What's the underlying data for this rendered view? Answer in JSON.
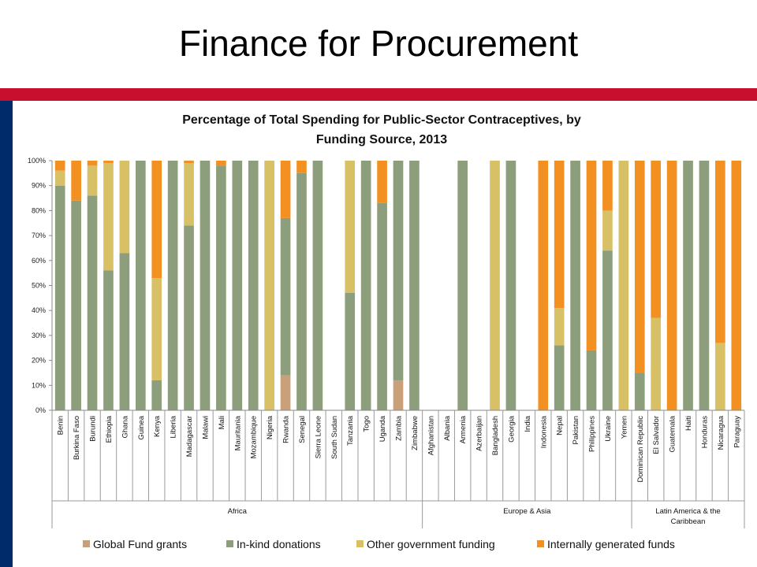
{
  "slide": {
    "title": "Finance for Procurement"
  },
  "colors": {
    "accent_band": "#c8102e",
    "side_bar": "#002b6b"
  },
  "chart_data": {
    "type": "bar",
    "stacked": true,
    "title": "Percentage of Total Spending for Public-Sector Contraceptives, by Funding Source, 2013",
    "title_lines": [
      "Percentage of Total Spending for Public-Sector Contraceptives, by",
      "Funding Source, 2013"
    ],
    "xlabel": "",
    "ylabel": "",
    "ylim": [
      0,
      100
    ],
    "yticks": [
      0,
      10,
      20,
      30,
      40,
      50,
      60,
      70,
      80,
      90,
      100
    ],
    "ytick_labels": [
      "0%",
      "10%",
      "20%",
      "30%",
      "40%",
      "50%",
      "60%",
      "70%",
      "80%",
      "90%",
      "100%"
    ],
    "grid": false,
    "legend": "bottom",
    "categories": [
      "Benin",
      "Burkina Faso",
      "Burundi",
      "Ethiopia",
      "Ghana",
      "Guinea",
      "Kenya",
      "Liberia",
      "Madagascar",
      "Malawi",
      "Mali",
      "Mauritania",
      "Mozambique",
      "Nigeria",
      "Rwanda",
      "Senegal",
      "Sierra Leone",
      "South Sudan",
      "Tanzania",
      "Togo",
      "Uganda",
      "Zambia",
      "Zimbabwe",
      "Afghanistan",
      "Albania",
      "Armenia",
      "Azerbaijan",
      "Bangladesh",
      "Georgia",
      "India",
      "Indonesia",
      "Nepal",
      "Pakistan",
      "Philippines",
      "Ukraine",
      "Yemen",
      "Dominican Republic",
      "El Salvador",
      "Guatemala",
      "Haiti",
      "Honduras",
      "Nicaragua",
      "Paraguay"
    ],
    "groups": [
      {
        "name": "Africa",
        "start": 0,
        "end": 22
      },
      {
        "name": "Europe & Asia",
        "start": 23,
        "end": 35
      },
      {
        "name": "Latin America & the Caribbean",
        "name_lines": [
          "Latin America & the",
          "Caribbean"
        ],
        "start": 36,
        "end": 42
      }
    ],
    "series": [
      {
        "name": "Global Fund grants",
        "color": "#c9a07a",
        "values": [
          0,
          0,
          0,
          0,
          0,
          0,
          0,
          0,
          0,
          0,
          0,
          0,
          0,
          0,
          14,
          0,
          0,
          0,
          0,
          0,
          0,
          12,
          0,
          0,
          0,
          0,
          0,
          0,
          0,
          0,
          0,
          0,
          0,
          0,
          0,
          0,
          0,
          0,
          0,
          0,
          0,
          0,
          0
        ]
      },
      {
        "name": "In-kind donations",
        "color": "#8c9e7b",
        "values": [
          90,
          84,
          86,
          56,
          63,
          100,
          12,
          100,
          74,
          100,
          98,
          100,
          100,
          0,
          63,
          95,
          100,
          0,
          47,
          100,
          83,
          88,
          100,
          0,
          0,
          100,
          0,
          0,
          100,
          0,
          0,
          26,
          100,
          24,
          64,
          0,
          15,
          0,
          0,
          100,
          100,
          0,
          0
        ]
      },
      {
        "name": "Other government funding",
        "color": "#d8c066",
        "values": [
          6,
          0,
          12,
          43,
          37,
          0,
          41,
          0,
          25,
          0,
          0,
          0,
          0,
          100,
          0,
          0,
          0,
          0,
          53,
          0,
          0,
          0,
          0,
          0,
          0,
          0,
          0,
          100,
          0,
          0,
          0,
          15,
          0,
          0,
          16,
          100,
          0,
          37,
          0,
          0,
          0,
          27,
          0
        ]
      },
      {
        "name": "Internally generated funds",
        "color": "#f39022",
        "values": [
          4,
          16,
          2,
          1,
          0,
          0,
          47,
          0,
          1,
          0,
          2,
          0,
          0,
          0,
          23,
          5,
          0,
          0,
          0,
          0,
          17,
          0,
          0,
          0,
          0,
          0,
          0,
          0,
          0,
          0,
          100,
          59,
          0,
          76,
          20,
          0,
          85,
          63,
          100,
          0,
          0,
          73,
          100
        ]
      }
    ]
  }
}
